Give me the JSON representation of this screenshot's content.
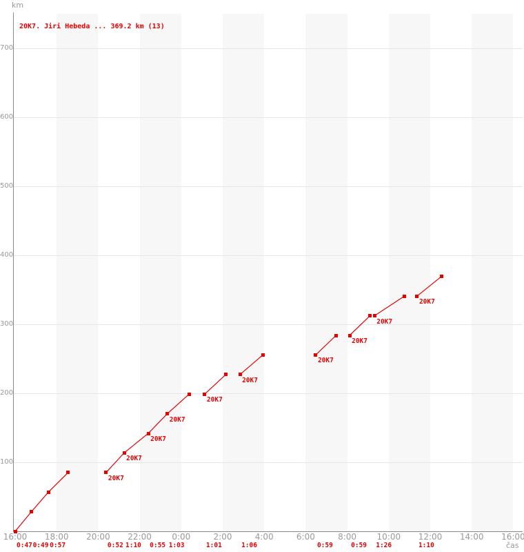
{
  "chart_data": {
    "type": "line",
    "title": "20K7. Jiri Hebeda ... 369.2 km (13)",
    "y_axis_label": "km",
    "x_axis_label": "čas",
    "runner_bib": "20K7",
    "runner_name": "Jiri Hebeda",
    "total_km": 369.2,
    "lap_count": 13,
    "lap_km": 28.4,
    "point_label_text": "20K7",
    "y_ticks": [
      100,
      200,
      300,
      400,
      500,
      600,
      700
    ],
    "ylim": [
      0,
      750
    ],
    "x_ticks": [
      {
        "label": "16:00",
        "h": 0
      },
      {
        "label": "18:00",
        "h": 2
      },
      {
        "label": "20:00",
        "h": 4
      },
      {
        "label": "22:00",
        "h": 6
      },
      {
        "label": "0:00",
        "h": 8
      },
      {
        "label": "2:00",
        "h": 10
      },
      {
        "label": "4:00",
        "h": 12
      },
      {
        "label": "6:00",
        "h": 14
      },
      {
        "label": "8:00",
        "h": 16
      },
      {
        "label": "10:00",
        "h": 18
      },
      {
        "label": "12:00",
        "h": 20
      },
      {
        "label": "14:00",
        "h": 22
      },
      {
        "label": "16:00",
        "h": 24
      }
    ],
    "xlim_hours": [
      0,
      24
    ],
    "segments": [
      {
        "lap_times": [
          "0:47",
          "0:49",
          "0:57"
        ],
        "points": [
          {
            "time": "16:00",
            "h": 0.0,
            "km": 0.0,
            "labeled": false
          },
          {
            "time": "16:47",
            "h": 0.7833,
            "km": 28.4,
            "labeled": false
          },
          {
            "time": "17:36",
            "h": 1.6,
            "km": 56.8,
            "labeled": false
          },
          {
            "time": "18:33",
            "h": 2.55,
            "km": 85.2,
            "labeled": false
          }
        ]
      },
      {
        "lap_times": [
          "0:52",
          "1:10",
          "0:55",
          "1:03"
        ],
        "points": [
          {
            "time": "20:23",
            "h": 4.3833,
            "km": 85.2,
            "labeled": true
          },
          {
            "time": "21:15",
            "h": 5.25,
            "km": 113.6,
            "labeled": true
          },
          {
            "time": "22:25",
            "h": 6.4167,
            "km": 142.0,
            "labeled": true
          },
          {
            "time": "23:20",
            "h": 7.3333,
            "km": 170.4,
            "labeled": true
          },
          {
            "time": "0:23",
            "h": 8.3833,
            "km": 198.8,
            "labeled": false
          }
        ]
      },
      {
        "lap_times": [
          "1:01"
        ],
        "points": [
          {
            "time": "1:08",
            "h": 9.1333,
            "km": 198.8,
            "labeled": true
          },
          {
            "time": "2:09",
            "h": 10.15,
            "km": 227.2,
            "labeled": false
          }
        ]
      },
      {
        "lap_times": [
          "1:06"
        ],
        "points": [
          {
            "time": "2:50",
            "h": 10.8333,
            "km": 227.2,
            "labeled": true
          },
          {
            "time": "3:56",
            "h": 11.9333,
            "km": 255.6,
            "labeled": false
          }
        ]
      },
      {
        "lap_times": [
          "0:59"
        ],
        "points": [
          {
            "time": "6:29",
            "h": 14.4833,
            "km": 255.6,
            "labeled": true
          },
          {
            "time": "7:28",
            "h": 15.4667,
            "km": 284.0,
            "labeled": false
          }
        ]
      },
      {
        "lap_times": [
          "0:59"
        ],
        "points": [
          {
            "time": "8:07",
            "h": 16.1167,
            "km": 284.0,
            "labeled": true
          },
          {
            "time": "9:06",
            "h": 17.1,
            "km": 312.4,
            "labeled": false
          }
        ]
      },
      {
        "lap_times": [
          "1:26"
        ],
        "points": [
          {
            "time": "9:19",
            "h": 17.3167,
            "km": 312.4,
            "labeled": true
          },
          {
            "time": "10:45",
            "h": 18.75,
            "km": 340.8,
            "labeled": false
          }
        ]
      },
      {
        "lap_times": [
          "1:10"
        ],
        "points": [
          {
            "time": "11:22",
            "h": 19.3667,
            "km": 340.8,
            "labeled": true
          },
          {
            "time": "12:32",
            "h": 20.5333,
            "km": 369.2,
            "labeled": false
          }
        ]
      }
    ],
    "colors": {
      "series_red": "#e60000",
      "grid": "#e6e6e6",
      "stripe": "#f7f7f7",
      "axis": "#888888",
      "tick_text": "#999999",
      "background": "#ffffff"
    },
    "layout_hints": {
      "grid": "horizontal lines at every 100 km; alternating vertical 2-hour shaded bands",
      "legend_position": "none",
      "marker": "open red square with center dot"
    }
  }
}
